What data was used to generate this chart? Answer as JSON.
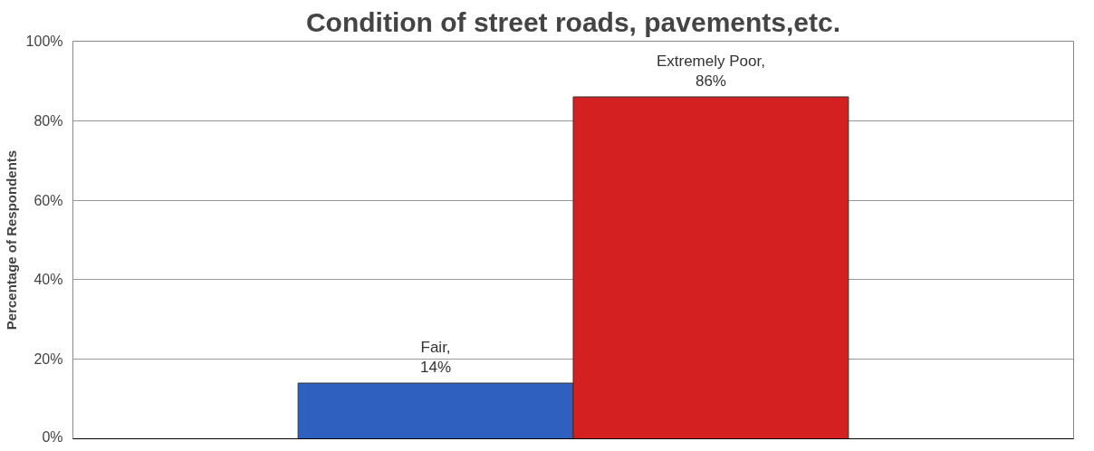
{
  "chart_data": {
    "type": "bar",
    "title": "Condition of street roads, pavements,etc.",
    "ylabel": "Percentage of Respondents",
    "categories": [
      null
    ],
    "series": [
      {
        "color": "#2f5fbf",
        "values": [
          14
        ],
        "value_labels": [
          "Fair,\n14%"
        ]
      },
      {
        "color": "#d42020",
        "values": [
          86
        ],
        "value_labels": [
          "Extremely Poor,\n86%"
        ]
      }
    ],
    "ylim": [
      0,
      100
    ],
    "yticks": [
      {
        "value": 0,
        "label": "0%"
      },
      {
        "value": 20,
        "label": "20%"
      },
      {
        "value": 40,
        "label": "40%"
      },
      {
        "value": 60,
        "label": "60%"
      },
      {
        "value": 80,
        "label": "80%"
      },
      {
        "value": 100,
        "label": "100%"
      }
    ],
    "grid": "y",
    "legend": false,
    "tick_labels": "y"
  }
}
